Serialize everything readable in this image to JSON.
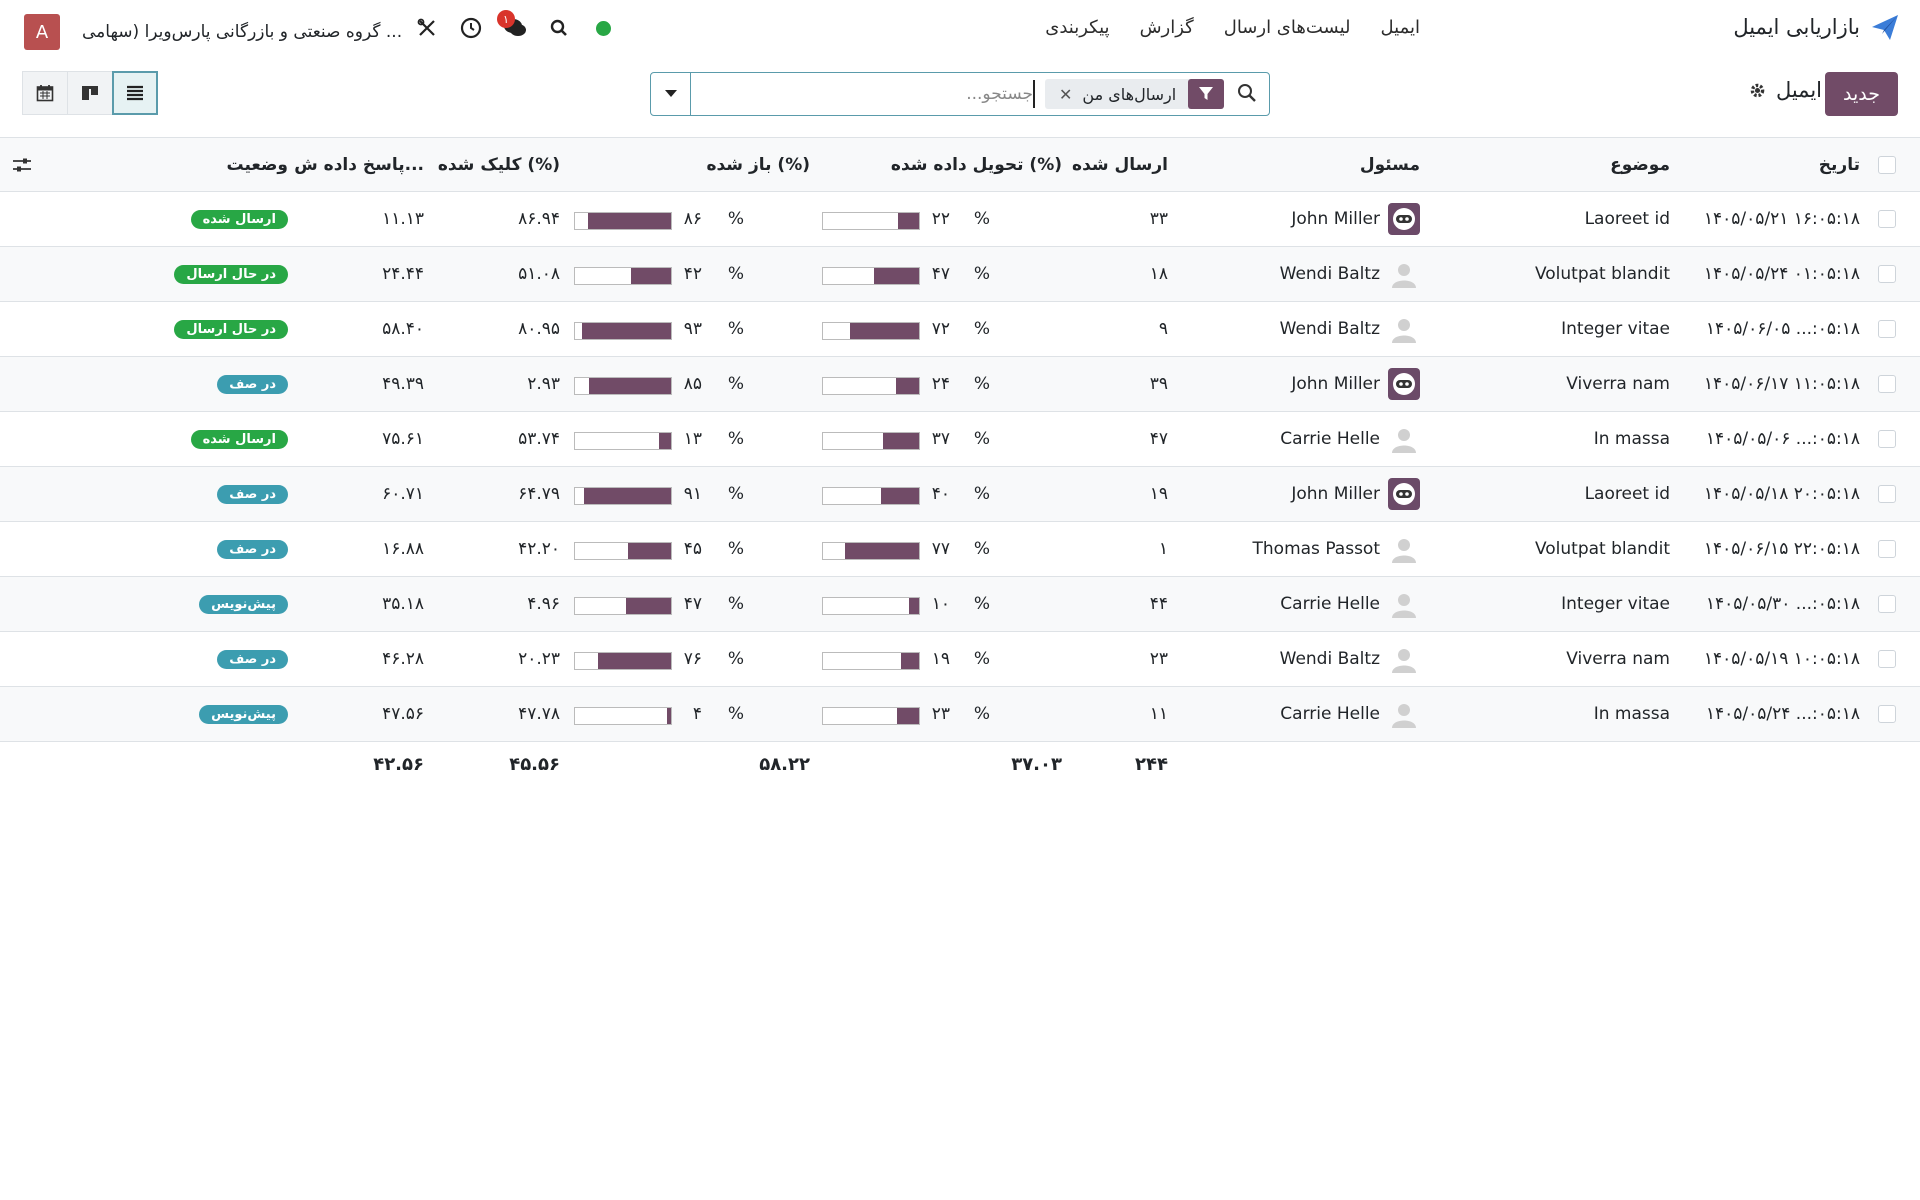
{
  "colors": {
    "brand": "#714b67",
    "accent": "#5a9bab"
  },
  "navbar": {
    "app_name": "بازاریابی ایمیل",
    "menu": [
      "ایمیل",
      "لیست‌های ارسال",
      "گزارش",
      "پیکربندی"
    ],
    "user_initial": "A",
    "company": "گروه صنعتی و بازرگانی پارس‌ویرا (سهامی ...",
    "notification_count": "۱"
  },
  "control": {
    "new_button": "جدید",
    "title": "ایمیل",
    "search_placeholder": "جستجو...",
    "facet_label": "ارسال‌های من"
  },
  "table": {
    "headers": {
      "date": "تاریخ",
      "subject": "موضوع",
      "responsible": "مسئول",
      "sent": "ارسال شده",
      "delivered": "تحویل داده شده (%)",
      "opened": "باز شده (%)",
      "clicked": "کلیک شده (%)",
      "replied": "پاسخ داده ش...",
      "status": "وضعیت"
    },
    "percent_sign": "%",
    "rows": [
      {
        "date": "۱۴۰۵/۰۵/۲۱ ۱۶:۰۵:۱۸",
        "subject": "Laoreet id",
        "responsible": "John Miller",
        "avatar": "img",
        "sent": "۳۳",
        "delivered": "۲۲",
        "delivered_v": 22,
        "opened": "۸۶",
        "opened_v": 86,
        "clicked": "۸۶.۹۴",
        "replied": "۱۱.۱۳",
        "status": "ارسال شده",
        "status_kind": "sent"
      },
      {
        "date": "۱۴۰۵/۰۵/۲۴ ۰۱:۰۵:۱۸",
        "subject": "Volutpat blandit",
        "responsible": "Wendi Baltz",
        "avatar": "ph",
        "sent": "۱۸",
        "delivered": "۴۷",
        "delivered_v": 47,
        "opened": "۴۲",
        "opened_v": 42,
        "clicked": "۵۱.۰۸",
        "replied": "۲۴.۴۴",
        "status": "در حال ارسال",
        "status_kind": "sending"
      },
      {
        "date": "۱۴۰۵/۰۶/۰۵ ...:۰۵:۱۸",
        "subject": "Integer vitae",
        "responsible": "Wendi Baltz",
        "avatar": "ph",
        "sent": "۹",
        "delivered": "۷۲",
        "delivered_v": 72,
        "opened": "۹۳",
        "opened_v": 93,
        "clicked": "۸۰.۹۵",
        "replied": "۵۸.۴۰",
        "status": "در حال ارسال",
        "status_kind": "sending"
      },
      {
        "date": "۱۴۰۵/۰۶/۱۷ ۱۱:۰۵:۱۸",
        "subject": "Viverra nam",
        "responsible": "John Miller",
        "avatar": "img",
        "sent": "۳۹",
        "delivered": "۲۴",
        "delivered_v": 24,
        "opened": "۸۵",
        "opened_v": 85,
        "clicked": "۲.۹۳",
        "replied": "۴۹.۳۹",
        "status": "در صف",
        "status_kind": "queue"
      },
      {
        "date": "۱۴۰۵/۰۵/۰۶ ...:۰۵:۱۸",
        "subject": "In massa",
        "responsible": "Carrie Helle",
        "avatar": "ph",
        "sent": "۴۷",
        "delivered": "۳۷",
        "delivered_v": 37,
        "opened": "۱۳",
        "opened_v": 13,
        "clicked": "۵۳.۷۴",
        "replied": "۷۵.۶۱",
        "status": "ارسال شده",
        "status_kind": "sent"
      },
      {
        "date": "۱۴۰۵/۰۵/۱۸ ۲۰:۰۵:۱۸",
        "subject": "Laoreet id",
        "responsible": "John Miller",
        "avatar": "img",
        "sent": "۱۹",
        "delivered": "۴۰",
        "delivered_v": 40,
        "opened": "۹۱",
        "opened_v": 91,
        "clicked": "۶۴.۷۹",
        "replied": "۶۰.۷۱",
        "status": "در صف",
        "status_kind": "queue"
      },
      {
        "date": "۱۴۰۵/۰۶/۱۵ ۲۲:۰۵:۱۸",
        "subject": "Volutpat blandit",
        "responsible": "Thomas Passot",
        "avatar": "ph",
        "sent": "۱",
        "delivered": "۷۷",
        "delivered_v": 77,
        "opened": "۴۵",
        "opened_v": 45,
        "clicked": "۴۲.۲۰",
        "replied": "۱۶.۸۸",
        "status": "در صف",
        "status_kind": "queue"
      },
      {
        "date": "۱۴۰۵/۰۵/۳۰ ...:۰۵:۱۸",
        "subject": "Integer vitae",
        "responsible": "Carrie Helle",
        "avatar": "ph",
        "sent": "۴۴",
        "delivered": "۱۰",
        "delivered_v": 10,
        "opened": "۴۷",
        "opened_v": 47,
        "clicked": "۴.۹۶",
        "replied": "۳۵.۱۸",
        "status": "پیش‌نویس",
        "status_kind": "draft"
      },
      {
        "date": "۱۴۰۵/۰۵/۱۹ ۱۰:۰۵:۱۸",
        "subject": "Viverra nam",
        "responsible": "Wendi Baltz",
        "avatar": "ph",
        "sent": "۲۳",
        "delivered": "۱۹",
        "delivered_v": 19,
        "opened": "۷۶",
        "opened_v": 76,
        "clicked": "۲۰.۲۳",
        "replied": "۴۶.۲۸",
        "status": "در صف",
        "status_kind": "queue"
      },
      {
        "date": "۱۴۰۵/۰۵/۲۴ ...:۰۵:۱۸",
        "subject": "In massa",
        "responsible": "Carrie Helle",
        "avatar": "ph",
        "sent": "۱۱",
        "delivered": "۲۳",
        "delivered_v": 23,
        "opened": "۴",
        "opened_v": 4,
        "clicked": "۴۷.۷۸",
        "replied": "۴۷.۵۶",
        "status": "پیش‌نویس",
        "status_kind": "draft"
      }
    ],
    "totals": {
      "sent": "۲۴۴",
      "delivered": "۳۷.۰۳",
      "opened": "۵۸.۲۲",
      "clicked": "۴۵.۵۶",
      "replied": "۴۲.۵۶"
    }
  }
}
